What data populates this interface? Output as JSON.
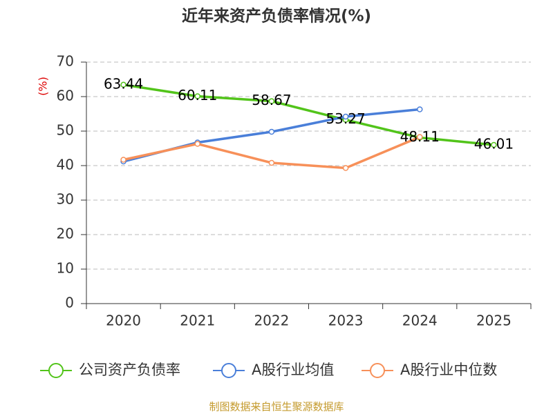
{
  "chart_data": {
    "type": "line",
    "title": "近年来资产负债率情况(%)",
    "y_label": "(%)",
    "categories": [
      "2020",
      "2021",
      "2022",
      "2023",
      "2024",
      "2025"
    ],
    "series": [
      {
        "name": "公司资产负债率",
        "color": "#52c41a",
        "values": [
          63.44,
          60.11,
          58.67,
          53.27,
          48.11,
          46.01
        ],
        "data_labels": true
      },
      {
        "name": "A股行业均值",
        "color": "#4a7fd9",
        "values": [
          41.2,
          46.7,
          49.8,
          54.2,
          56.3,
          null
        ]
      },
      {
        "name": "A股行业中位数",
        "color": "#f79059",
        "values": [
          41.7,
          46.3,
          40.8,
          39.3,
          48.3,
          null
        ]
      }
    ],
    "ylim": [
      0,
      70
    ],
    "yticks": [
      0,
      10,
      20,
      30,
      40,
      50,
      60,
      70
    ],
    "grid": true,
    "legend": "bottom",
    "source": "制图数据来自恒生聚源数据库"
  }
}
